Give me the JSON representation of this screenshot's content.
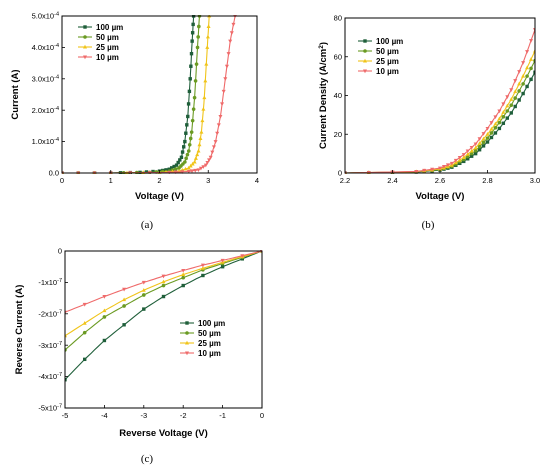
{
  "colors": {
    "100um": "#1f5f3a",
    "50um": "#6a9a22",
    "25um": "#f0c419",
    "10um": "#ef6a6a"
  },
  "chart_data": [
    {
      "id": "a",
      "type": "line",
      "caption": "(a)",
      "xlabel": "Voltage (V)",
      "ylabel": "Current (A)",
      "xlim": [
        0,
        4
      ],
      "ylim": [
        0,
        0.0005
      ],
      "x_ticks": [
        0,
        1,
        2,
        3,
        4
      ],
      "x_tick_labels": [
        "0",
        "1",
        "2",
        "3",
        "4"
      ],
      "y_ticks": [
        0,
        0.0001,
        0.0002,
        0.0003,
        0.0004,
        0.0005
      ],
      "y_tick_labels": [
        "0.0",
        "1.0x10-4",
        "2.0x10-4",
        "3.0x10-4",
        "4.0x10-4",
        "5.0x10-4"
      ],
      "legend_position": "top-left",
      "series": [
        {
          "name": "100 µm",
          "key": "100um",
          "x": [
            0,
            1.0,
            1.6,
            2.0,
            2.2,
            2.35,
            2.45,
            2.52,
            2.58,
            2.63,
            2.67,
            2.7
          ],
          "y": [
            0,
            0,
            2e-06,
            6e-06,
            1.2e-05,
            2.5e-05,
            5e-05,
            0.0001,
            0.00018,
            0.0003,
            0.00042,
            0.0005
          ]
        },
        {
          "name": "50 µm",
          "key": "50um",
          "x": [
            0,
            1.0,
            1.8,
            2.2,
            2.4,
            2.52,
            2.6,
            2.66,
            2.72,
            2.78,
            2.82
          ],
          "y": [
            0,
            0,
            2e-06,
            6e-06,
            1.6e-05,
            3.5e-05,
            7e-05,
            0.00013,
            0.00024,
            0.0004,
            0.0005
          ]
        },
        {
          "name": "25 µm",
          "key": "25um",
          "x": [
            0,
            1.0,
            2.0,
            2.4,
            2.6,
            2.72,
            2.8,
            2.86,
            2.92,
            2.98,
            3.02
          ],
          "y": [
            0,
            0,
            2e-06,
            6e-06,
            1.6e-05,
            3.5e-05,
            7e-05,
            0.00013,
            0.00024,
            0.0004,
            0.0005
          ]
        },
        {
          "name": "10 µm",
          "key": "10um",
          "x": [
            0,
            1.0,
            2.2,
            2.6,
            2.8,
            2.95,
            3.05,
            3.15,
            3.25,
            3.35,
            3.45,
            3.55
          ],
          "y": [
            0,
            0,
            2e-06,
            5e-06,
            1e-05,
            2.5e-05,
            5e-05,
            0.0001,
            0.00018,
            0.0003,
            0.00042,
            0.0005
          ]
        }
      ]
    },
    {
      "id": "b",
      "type": "line",
      "caption": "(b)",
      "xlabel": "Voltage (V)",
      "ylabel": "Current Density (A/cm2)",
      "xlim": [
        2.2,
        3.0
      ],
      "ylim": [
        0,
        80
      ],
      "x_ticks": [
        2.2,
        2.4,
        2.6,
        2.8,
        3.0
      ],
      "x_tick_labels": [
        "2.2",
        "2.4",
        "2.6",
        "2.8",
        "3.0"
      ],
      "y_ticks": [
        0,
        20,
        40,
        60,
        80
      ],
      "y_tick_labels": [
        "0",
        "20",
        "40",
        "60",
        "80"
      ],
      "legend_position": "top-left",
      "series": [
        {
          "name": "100 µm",
          "key": "100um",
          "x": [
            2.2,
            2.5,
            2.6,
            2.65,
            2.7,
            2.75,
            2.8,
            2.85,
            2.9,
            2.95,
            3.0
          ],
          "y": [
            0,
            0.5,
            1.5,
            3,
            6,
            10,
            16,
            23,
            31,
            41,
            52
          ]
        },
        {
          "name": "50 µm",
          "key": "50um",
          "x": [
            2.2,
            2.5,
            2.6,
            2.65,
            2.7,
            2.75,
            2.8,
            2.85,
            2.9,
            2.95,
            3.0
          ],
          "y": [
            0,
            0.6,
            1.8,
            3.5,
            7,
            11.5,
            18,
            26,
            35,
            46,
            58
          ]
        },
        {
          "name": "25 µm",
          "key": "25um",
          "x": [
            2.2,
            2.5,
            2.6,
            2.65,
            2.7,
            2.75,
            2.8,
            2.85,
            2.9,
            2.95,
            3.0
          ],
          "y": [
            0,
            0.7,
            2,
            4,
            8,
            13,
            20,
            28,
            38,
            50,
            63
          ]
        },
        {
          "name": "10 µm",
          "key": "10um",
          "x": [
            2.2,
            2.5,
            2.6,
            2.65,
            2.7,
            2.75,
            2.8,
            2.85,
            2.9,
            2.95,
            3.0
          ],
          "y": [
            0,
            0.8,
            2.5,
            5,
            9.5,
            15,
            23,
            32,
            43,
            57,
            74
          ]
        }
      ]
    },
    {
      "id": "c",
      "type": "line",
      "caption": "(c)",
      "xlabel": "Reverse Voltage (V)",
      "ylabel": "Reverse Current (A)",
      "xlim": [
        -5,
        0
      ],
      "ylim": [
        -5e-07,
        0
      ],
      "x_ticks": [
        -5,
        -4,
        -3,
        -2,
        -1,
        0
      ],
      "x_tick_labels": [
        "-5",
        "-4",
        "-3",
        "-2",
        "-1",
        "0"
      ],
      "y_ticks": [
        -5e-07,
        -4e-07,
        -3e-07,
        -2e-07,
        -1e-07,
        0
      ],
      "y_tick_labels": [
        "-5x10-7",
        "-4x10-7",
        "-3x10-7",
        "-2x10-7",
        "-1x10-7",
        "0"
      ],
      "legend_position": "center-right",
      "series": [
        {
          "name": "100 µm",
          "key": "100um",
          "x": [
            -5,
            -4.5,
            -4,
            -3.5,
            -3,
            -2.5,
            -2,
            -1.5,
            -1,
            -0.5,
            0
          ],
          "y": [
            -4.1e-07,
            -3.45e-07,
            -2.85e-07,
            -2.35e-07,
            -1.85e-07,
            -1.45e-07,
            -1.1e-07,
            -7.8e-08,
            -5e-08,
            -2.5e-08,
            0
          ]
        },
        {
          "name": "50 µm",
          "key": "50um",
          "x": [
            -5,
            -4.5,
            -4,
            -3.5,
            -3,
            -2.5,
            -2,
            -1.5,
            -1,
            -0.5,
            0
          ],
          "y": [
            -3.15e-07,
            -2.6e-07,
            -2.1e-07,
            -1.75e-07,
            -1.4e-07,
            -1.1e-07,
            -8.5e-08,
            -6e-08,
            -4e-08,
            -2e-08,
            0
          ]
        },
        {
          "name": "25 µm",
          "key": "25um",
          "x": [
            -5,
            -4.5,
            -4,
            -3.5,
            -3,
            -2.5,
            -2,
            -1.5,
            -1,
            -0.5,
            0
          ],
          "y": [
            -2.7e-07,
            -2.3e-07,
            -1.9e-07,
            -1.55e-07,
            -1.25e-07,
            -9.8e-08,
            -7.5e-08,
            -5.5e-08,
            -3.6e-08,
            -1.8e-08,
            0
          ]
        },
        {
          "name": "10 µm",
          "key": "10um",
          "x": [
            -5,
            -4.5,
            -4,
            -3.5,
            -3,
            -2.5,
            -2,
            -1.5,
            -1,
            -0.5,
            0
          ],
          "y": [
            -1.95e-07,
            -1.7e-07,
            -1.45e-07,
            -1.22e-07,
            -1e-07,
            -8e-08,
            -6.2e-08,
            -4.5e-08,
            -3e-08,
            -1.5e-08,
            0
          ]
        }
      ]
    }
  ]
}
